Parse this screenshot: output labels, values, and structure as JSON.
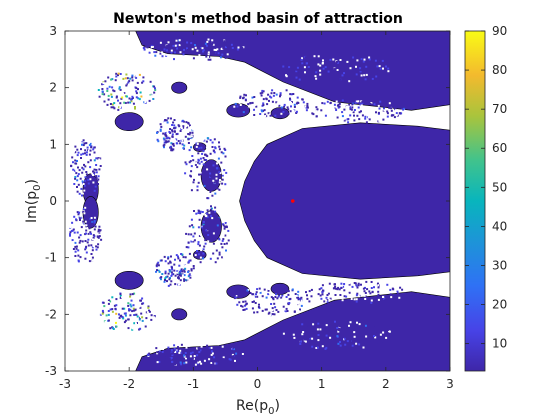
{
  "chart_data": {
    "type": "heatmap",
    "title": "Newton's method basin of attraction",
    "xlabel": {
      "main": "Re(p",
      "sub": "0",
      "close": ")"
    },
    "ylabel": {
      "main": "Im(p",
      "sub": "0",
      "close": ")"
    },
    "xlim": [
      -3,
      3
    ],
    "ylim": [
      -3,
      3
    ],
    "x_ticks": [
      -3,
      -2,
      -1,
      0,
      1,
      2,
      3
    ],
    "y_ticks": [
      -3,
      -2,
      -1,
      0,
      1,
      2,
      3
    ],
    "colorbar": {
      "range": [
        3,
        90
      ],
      "ticks": [
        10,
        20,
        30,
        40,
        50,
        60,
        70,
        80,
        90
      ],
      "colormap": "parula",
      "low_color": "#3e26a8",
      "high_color": "#f9fb15"
    },
    "background_color": "#ffffff",
    "basin_color": "#3e26a8",
    "marker": {
      "x": 0.55,
      "y": 0.0,
      "color": "#ff0000"
    },
    "grid": false
  }
}
